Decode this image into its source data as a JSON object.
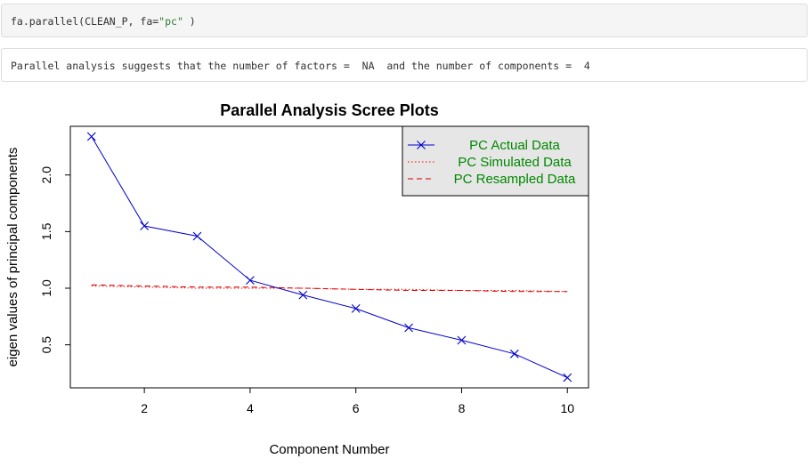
{
  "code": {
    "prefix": "fa.parallel(CLEAN_P, fa=",
    "string_arg": "\"pc\"",
    "suffix": " )"
  },
  "output": {
    "text": "Parallel analysis suggests that the number of factors =  NA  and the number of components =  4"
  },
  "chart_data": {
    "type": "line",
    "title": "Parallel Analysis Scree Plots",
    "xlabel": "Component Number",
    "ylabel": "eigen values of principal components",
    "xlim": [
      0.6,
      10.4
    ],
    "ylim": [
      0.12,
      2.43
    ],
    "x_ticks": [
      2,
      4,
      6,
      8,
      10
    ],
    "y_ticks": [
      0.5,
      1.0,
      1.5,
      2.0
    ],
    "x_tick_labels": [
      "2",
      "4",
      "6",
      "8",
      "10"
    ],
    "y_tick_labels": [
      "0.5",
      "1.0",
      "1.5",
      "2.0"
    ],
    "legend_position": "top-right",
    "grid": false,
    "x": [
      1,
      2,
      3,
      4,
      5,
      6,
      7,
      8,
      9,
      10
    ],
    "series": [
      {
        "name": "PC  Actual Data",
        "values": [
          2.34,
          1.55,
          1.46,
          1.07,
          0.94,
          0.82,
          0.65,
          0.54,
          0.42,
          0.21
        ],
        "color": "#0000cc",
        "line": "solid",
        "marker": "x"
      },
      {
        "name": "PC  Simulated Data",
        "values": [
          1.02,
          1.01,
          1.0,
          1.0,
          1.0,
          0.99,
          0.99,
          0.98,
          0.98,
          0.97
        ],
        "color": "#ff0000",
        "line": "dotted",
        "marker": "none"
      },
      {
        "name": "PC  Resampled Data",
        "values": [
          1.03,
          1.02,
          1.01,
          1.01,
          1.0,
          0.99,
          0.98,
          0.98,
          0.97,
          0.97
        ],
        "color": "#cc0000",
        "line": "dashed",
        "marker": "none"
      }
    ],
    "legend_text_color": "#008800",
    "legend_background": "#e6e6e6"
  }
}
